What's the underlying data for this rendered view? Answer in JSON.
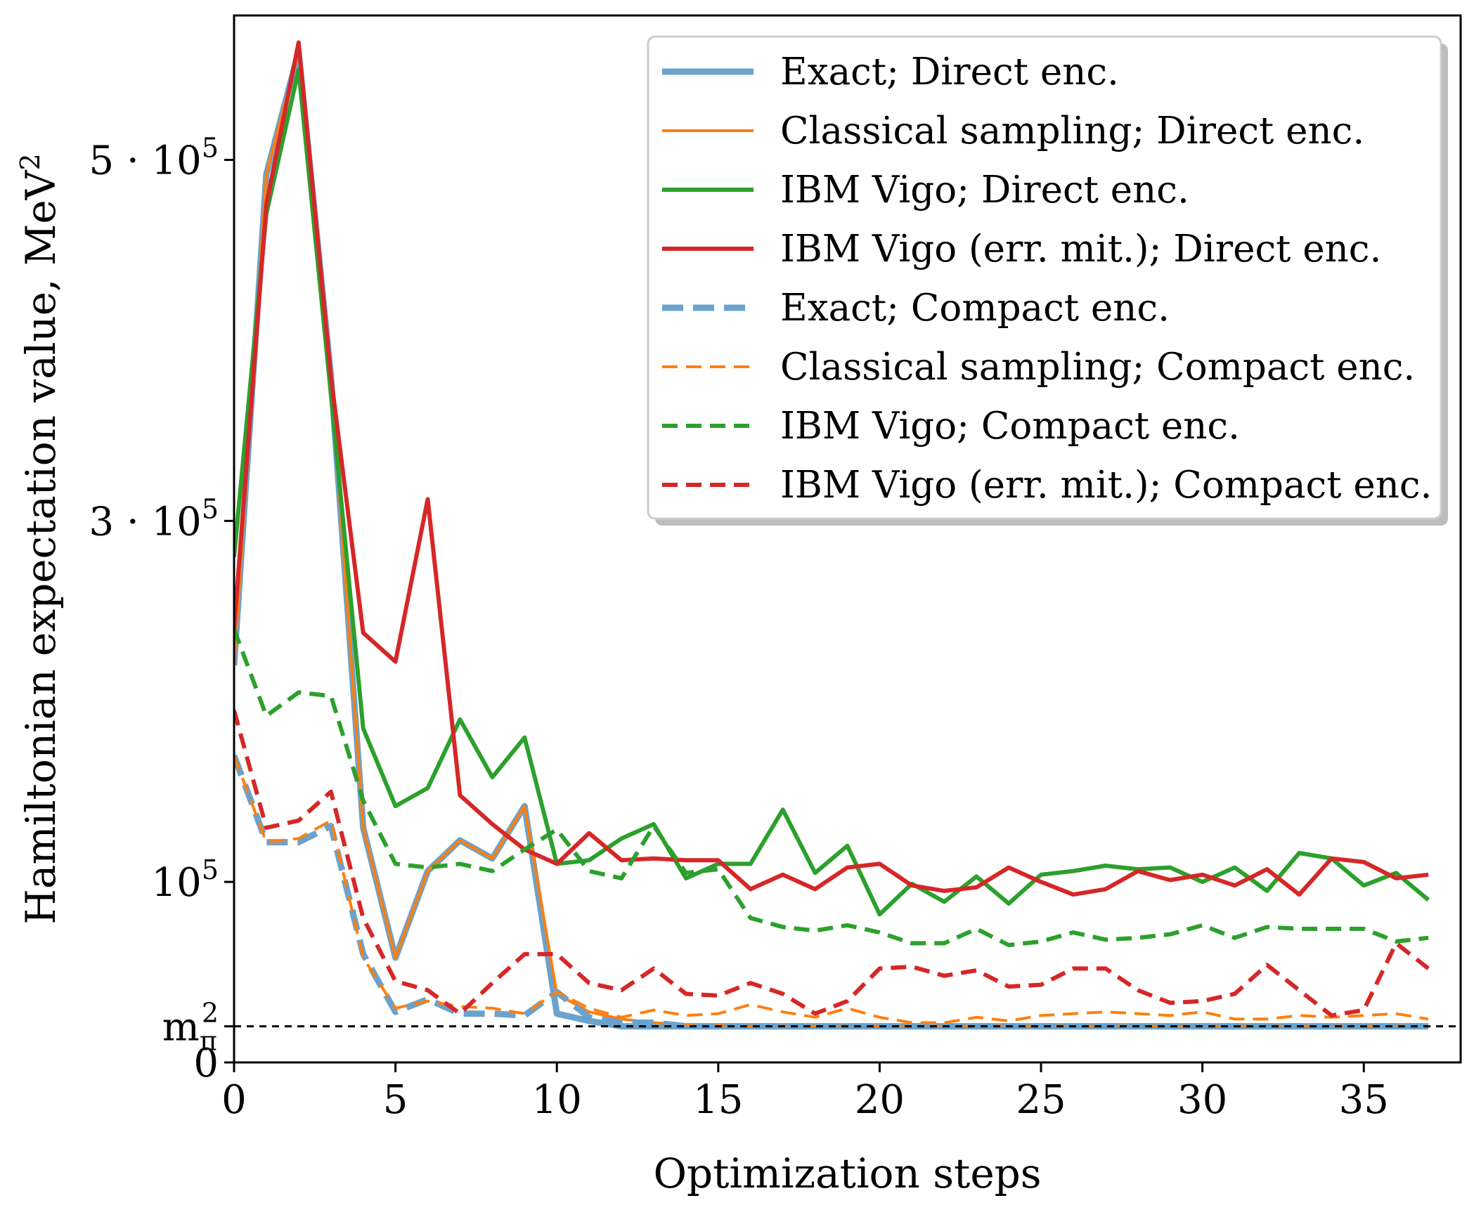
{
  "chart_data": {
    "type": "line",
    "xlabel": "Optimization steps",
    "ylabel": "Hamiltonian expectation value, MeV",
    "ylabel_sup": "2",
    "xlim": [
      0,
      38
    ],
    "ylim": [
      0,
      580000
    ],
    "xticks": [
      0,
      5,
      10,
      15,
      20,
      25,
      30,
      35
    ],
    "yticks": [
      {
        "value": 0,
        "label": "0"
      },
      {
        "value": 20000,
        "label": "m",
        "sub": "π",
        "sup": "2"
      },
      {
        "value": 100000,
        "label": "10",
        "sup": "5"
      },
      {
        "value": 300000,
        "label": "3 · 10",
        "sup": "5"
      },
      {
        "value": 500000,
        "label": "5 · 10",
        "sup": "5"
      }
    ],
    "reference_line": {
      "y": 20000,
      "style": "dashed",
      "color": "#000000"
    },
    "legend_position": "upper right",
    "series": [
      {
        "name": "Exact; Direct enc.",
        "color": "#6aa2cd",
        "style": "solid",
        "width": 9,
        "values": [
          220000,
          492000,
          560000,
          380000,
          130000,
          58000,
          106000,
          123000,
          113000,
          142000,
          27000,
          23000,
          20000,
          20000,
          20000,
          20000,
          20000,
          20000,
          20000,
          20000,
          20000,
          20000,
          20000,
          20000,
          20000,
          20000,
          20000,
          20000,
          20000,
          20000,
          20000,
          20000,
          20000,
          20000,
          20000,
          20000,
          20000,
          20000
        ]
      },
      {
        "name": "Classical sampling; Direct enc.",
        "color": "#ff7f0e",
        "style": "solid",
        "width": 4,
        "values": [
          220000,
          492000,
          560000,
          380000,
          130000,
          58000,
          106000,
          123000,
          113000,
          142000,
          38000,
          28000,
          24000,
          22000,
          21000,
          20500,
          20000,
          20000,
          20000,
          20000,
          20000,
          20000,
          20000,
          20000,
          20000,
          20000,
          20000,
          20000,
          20000,
          20000,
          20000,
          20000,
          20000,
          20000,
          20000,
          20000,
          20000,
          20000
        ]
      },
      {
        "name": "IBM Vigo; Direct enc.",
        "color": "#2ca02c",
        "style": "solid",
        "width": 6,
        "values": [
          280000,
          470000,
          550000,
          370000,
          185000,
          142000,
          152000,
          190000,
          158000,
          180000,
          110000,
          112000,
          124000,
          132000,
          102000,
          110000,
          110000,
          140000,
          105000,
          120000,
          82000,
          99000,
          89000,
          103000,
          88000,
          104000,
          106000,
          109000,
          107000,
          108000,
          100000,
          108000,
          95000,
          116000,
          113000,
          98000,
          105000,
          90000
        ]
      },
      {
        "name": "IBM Vigo (err. mit.); Direct enc.",
        "color": "#d62728",
        "style": "solid",
        "width": 6,
        "values": [
          240000,
          475000,
          565000,
          380000,
          238000,
          222000,
          312000,
          148000,
          132000,
          118000,
          110000,
          127000,
          112000,
          113000,
          112000,
          112000,
          96000,
          104000,
          96000,
          108000,
          110000,
          98000,
          95000,
          97000,
          108000,
          100000,
          93000,
          96000,
          106000,
          101000,
          104000,
          98000,
          107000,
          93000,
          113000,
          111000,
          102000,
          104000
        ]
      },
      {
        "name": "Exact; Compact enc.",
        "color": "#6aa2cd",
        "style": "dashed",
        "width": 9,
        "values": [
          170000,
          122000,
          122000,
          131000,
          60000,
          28000,
          35000,
          27000,
          27000,
          26000,
          39000,
          25000,
          22000,
          22000,
          20000,
          20000,
          20000,
          20000,
          20000,
          20000,
          20000,
          20000,
          20000,
          20000,
          20000,
          20000,
          20000,
          20000,
          20000,
          20000,
          20000,
          20000,
          20000,
          20000,
          20000,
          20000,
          20000,
          20000
        ]
      },
      {
        "name": "Classical sampling; Compact enc.",
        "color": "#ff7f0e",
        "style": "dashed",
        "width": 4,
        "values": [
          170000,
          122000,
          124000,
          134000,
          58000,
          30000,
          34000,
          31000,
          30000,
          27000,
          39000,
          30000,
          25000,
          29000,
          26000,
          27000,
          32000,
          28000,
          25000,
          30000,
          25000,
          22000,
          22000,
          25000,
          23000,
          26000,
          27000,
          28000,
          27000,
          26000,
          28000,
          24000,
          24000,
          26000,
          25000,
          26000,
          27000,
          24000
        ]
      },
      {
        "name": "IBM Vigo; Compact enc.",
        "color": "#2ca02c",
        "style": "dashed",
        "width": 6,
        "values": [
          240000,
          192000,
          205000,
          203000,
          145000,
          110000,
          108000,
          110000,
          106000,
          118000,
          129000,
          106000,
          102000,
          131000,
          105000,
          107000,
          80000,
          75000,
          73000,
          76000,
          72000,
          66000,
          66000,
          74000,
          65000,
          67000,
          72000,
          68000,
          69000,
          71000,
          76000,
          69000,
          75000,
          74000,
          74000,
          74000,
          67000,
          69000
        ]
      },
      {
        "name": "IBM Vigo (err. mit.); Compact enc.",
        "color": "#d62728",
        "style": "dashed",
        "width": 6,
        "values": [
          195000,
          130000,
          134000,
          150000,
          80000,
          45000,
          40000,
          27000,
          44000,
          60000,
          60000,
          44000,
          40000,
          52000,
          38000,
          37000,
          44000,
          38000,
          27000,
          34000,
          52000,
          53000,
          48000,
          51000,
          42000,
          43000,
          52000,
          52000,
          40000,
          33000,
          34000,
          38000,
          54000,
          40000,
          26000,
          29000,
          66000,
          52000
        ]
      }
    ]
  }
}
